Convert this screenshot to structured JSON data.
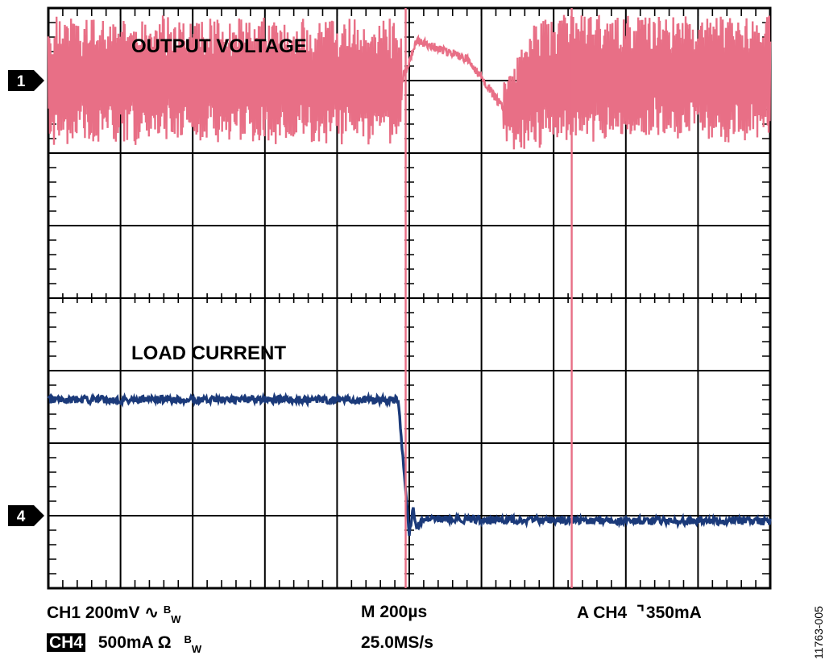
{
  "chart_data": {
    "type": "line",
    "title": "",
    "xlabel": "",
    "ylabel": "",
    "grid": true,
    "divisions": {
      "x": 10,
      "y": 8
    },
    "trigger_time_div": 4.9,
    "time_per_div": "200µs",
    "series": [
      {
        "name": "OUTPUT VOLTAGE",
        "channel": "1",
        "color": "#e86f86",
        "scale": "200mV/div",
        "baseline_div": 1.0,
        "ripple_pp_div": 1.7,
        "points": [
          [
            0.0,
            0.0
          ],
          [
            4.9,
            0.0
          ],
          [
            5.1,
            -0.55
          ],
          [
            5.8,
            -0.3
          ],
          [
            6.35,
            0.45
          ],
          [
            6.7,
            0.05
          ],
          [
            7.3,
            -0.05
          ],
          [
            10.0,
            -0.03
          ]
        ]
      },
      {
        "name": "LOAD CURRENT",
        "channel": "4",
        "color": "#1b3a7a",
        "scale": "500mA/div",
        "baseline_div": 7.0,
        "points": [
          [
            0.0,
            -1.6
          ],
          [
            4.85,
            -1.6
          ],
          [
            4.95,
            -0.3
          ],
          [
            5.0,
            0.25
          ],
          [
            5.05,
            -0.1
          ],
          [
            5.1,
            0.15
          ],
          [
            5.2,
            0.05
          ],
          [
            10.0,
            0.08
          ]
        ]
      }
    ],
    "markers": [
      {
        "label": "1",
        "color": "#000000"
      },
      {
        "label": "4",
        "color": "#000000"
      }
    ]
  },
  "scope_info": {
    "ch1_line": "CH1  200mV",
    "ch1_bw": "B",
    "ch1_bw_sub": "W",
    "ch4_label": "CH4",
    "ch4_line": "500mA  Ω",
    "ch4_bw": "B",
    "ch4_bw_sub": "W",
    "timebase": "M 200µs",
    "sample_rate": "25.0MS/s",
    "trigger": "A  CH4",
    "trigger_level": "350mA"
  },
  "figure_id": "11763-005"
}
